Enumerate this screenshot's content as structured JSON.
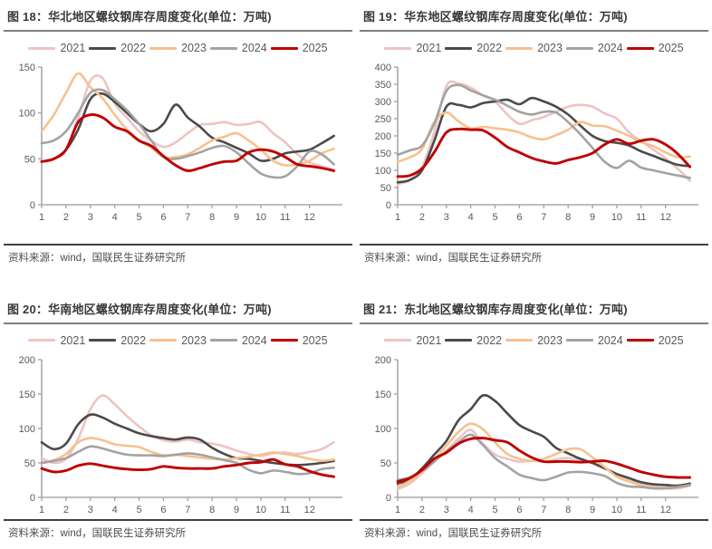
{
  "page": {
    "background": "#ffffff"
  },
  "colors": {
    "2021": "#eec3c4",
    "2022": "#4a4a4a",
    "2023": "#f7c18c",
    "2024": "#a3a3a3",
    "2025": "#bf0000",
    "axis": "#a8a8a8",
    "title_text": "#383838",
    "legend_text": "#595959",
    "tick_text": "#595959",
    "source_text": "#4d4d4d",
    "title_rule": "#7f7f7f",
    "source_rule": "#404040"
  },
  "source_label": "资料来源：wind，国联民生证券研究所",
  "chart_data": [
    {
      "id": "fig18",
      "type": "line",
      "title": "图 18：华北地区螺纹钢库存周度变化(单位：万吨)",
      "x": [
        1,
        1.5,
        2,
        2.5,
        3,
        3.5,
        4,
        4.5,
        5,
        5.5,
        6,
        6.5,
        7,
        7.5,
        8,
        8.5,
        9,
        9.5,
        10,
        10.5,
        11,
        11.5,
        12,
        12.5,
        13
      ],
      "xticks": [
        1,
        2,
        3,
        4,
        5,
        6,
        7,
        8,
        9,
        10,
        11,
        12
      ],
      "ylim": [
        0,
        150
      ],
      "yticks": [
        0,
        50,
        100,
        150
      ],
      "legend_position": "top",
      "grid": false,
      "series": [
        {
          "name": "2021",
          "values": [
            47,
            50,
            60,
            95,
            135,
            138,
            110,
            95,
            80,
            70,
            63,
            68,
            78,
            87,
            88,
            90,
            87,
            88,
            90,
            78,
            68,
            55,
            46,
            42,
            38
          ]
        },
        {
          "name": "2022",
          "values": [
            47,
            50,
            60,
            82,
            115,
            121,
            112,
            100,
            88,
            80,
            88,
            109,
            95,
            85,
            73,
            68,
            62,
            56,
            48,
            50,
            56,
            58,
            60,
            67,
            75
          ]
        },
        {
          "name": "2023",
          "values": [
            80,
            98,
            122,
            143,
            128,
            116,
            98,
            82,
            70,
            62,
            52,
            52,
            55,
            62,
            70,
            74,
            78,
            70,
            60,
            48,
            43,
            44,
            48,
            56,
            61
          ]
        },
        {
          "name": "2024",
          "values": [
            67,
            70,
            80,
            100,
            122,
            125,
            115,
            103,
            88,
            70,
            52,
            50,
            53,
            57,
            62,
            64,
            57,
            45,
            34,
            30,
            31,
            42,
            58,
            55,
            44
          ]
        },
        {
          "name": "2025",
          "values": [
            47,
            50,
            60,
            90,
            98,
            95,
            85,
            80,
            70,
            64,
            53,
            43,
            37,
            40,
            44,
            47,
            48,
            57,
            60,
            58,
            52,
            44,
            42,
            40,
            37
          ]
        }
      ]
    },
    {
      "id": "fig19",
      "type": "line",
      "title": "图 19：华东地区螺纹钢库存周度变化(单位：万吨)",
      "x": [
        1,
        1.5,
        2,
        2.5,
        3,
        3.5,
        4,
        4.5,
        5,
        5.5,
        6,
        6.5,
        7,
        7.5,
        8,
        8.5,
        9,
        9.5,
        10,
        10.5,
        11,
        11.5,
        12,
        12.5,
        13
      ],
      "xticks": [
        1,
        2,
        3,
        4,
        5,
        6,
        7,
        8,
        9,
        10,
        11,
        12
      ],
      "ylim": [
        0,
        400
      ],
      "yticks": [
        0,
        50,
        100,
        150,
        200,
        250,
        300,
        350,
        400
      ],
      "legend_position": "top",
      "grid": false,
      "series": [
        {
          "name": "2021",
          "values": [
            60,
            72,
            110,
            210,
            345,
            352,
            340,
            318,
            300,
            262,
            235,
            245,
            255,
            270,
            285,
            290,
            285,
            265,
            250,
            210,
            185,
            160,
            135,
            105,
            70
          ]
        },
        {
          "name": "2022",
          "values": [
            65,
            72,
            100,
            185,
            285,
            290,
            283,
            295,
            300,
            305,
            292,
            310,
            300,
            285,
            262,
            230,
            200,
            185,
            180,
            172,
            155,
            142,
            128,
            116,
            112
          ]
        },
        {
          "name": "2023",
          "values": [
            125,
            138,
            162,
            240,
            268,
            242,
            222,
            226,
            222,
            218,
            210,
            196,
            190,
            202,
            218,
            240,
            230,
            228,
            215,
            200,
            182,
            170,
            152,
            138,
            140
          ]
        },
        {
          "name": "2024",
          "values": [
            145,
            158,
            172,
            235,
            330,
            348,
            332,
            318,
            305,
            288,
            270,
            262,
            270,
            268,
            240,
            205,
            165,
            125,
            107,
            128,
            108,
            100,
            92,
            85,
            78
          ]
        },
        {
          "name": "2025",
          "values": [
            82,
            85,
            105,
            152,
            210,
            220,
            218,
            216,
            195,
            168,
            152,
            136,
            126,
            120,
            130,
            138,
            150,
            175,
            190,
            177,
            186,
            190,
            175,
            148,
            110
          ]
        }
      ]
    },
    {
      "id": "fig20",
      "type": "line",
      "title": "图 20：华南地区螺纹钢库存周度变化(单位：万吨)",
      "x": [
        1,
        1.5,
        2,
        2.5,
        3,
        3.5,
        4,
        4.5,
        5,
        5.5,
        6,
        6.5,
        7,
        7.5,
        8,
        8.5,
        9,
        9.5,
        10,
        10.5,
        11,
        11.5,
        12,
        12.5,
        13
      ],
      "xticks": [
        1,
        2,
        3,
        4,
        5,
        6,
        7,
        8,
        9,
        10,
        11,
        12
      ],
      "ylim": [
        0,
        200
      ],
      "yticks": [
        0,
        50,
        100,
        150,
        200
      ],
      "legend_position": "top",
      "grid": false,
      "series": [
        {
          "name": "2021",
          "values": [
            57,
            50,
            56,
            85,
            128,
            148,
            135,
            118,
            103,
            90,
            83,
            81,
            84,
            80,
            78,
            74,
            68,
            63,
            60,
            64,
            65,
            63,
            66,
            70,
            80
          ]
        },
        {
          "name": "2022",
          "values": [
            80,
            70,
            78,
            106,
            120,
            116,
            107,
            100,
            93,
            89,
            86,
            84,
            87,
            84,
            72,
            63,
            57,
            56,
            53,
            50,
            48,
            47,
            48,
            50,
            53
          ]
        },
        {
          "name": "2023",
          "values": [
            50,
            54,
            63,
            80,
            86,
            83,
            77,
            75,
            73,
            66,
            61,
            62,
            60,
            58,
            56,
            55,
            57,
            59,
            62,
            65,
            63,
            60,
            56,
            53,
            55
          ]
        },
        {
          "name": "2024",
          "values": [
            50,
            53,
            57,
            66,
            74,
            71,
            66,
            62,
            61,
            61,
            60,
            62,
            64,
            62,
            58,
            54,
            50,
            40,
            35,
            39,
            37,
            34,
            35,
            41,
            43
          ]
        },
        {
          "name": "2025",
          "values": [
            42,
            37,
            39,
            46,
            49,
            46,
            43,
            41,
            40,
            41,
            45,
            43,
            42,
            42,
            42,
            45,
            47,
            50,
            51,
            55,
            48,
            45,
            38,
            33,
            30
          ]
        }
      ]
    },
    {
      "id": "fig21",
      "type": "line",
      "title": "图 21：东北地区螺纹钢库存周度变化(单位：万吨)",
      "x": [
        1,
        1.5,
        2,
        2.5,
        3,
        3.5,
        4,
        4.5,
        5,
        5.5,
        6,
        6.5,
        7,
        7.5,
        8,
        8.5,
        9,
        9.5,
        10,
        10.5,
        11,
        11.5,
        12,
        12.5,
        13
      ],
      "xticks": [
        1,
        2,
        3,
        4,
        5,
        6,
        7,
        8,
        9,
        10,
        11,
        12
      ],
      "ylim": [
        0,
        200
      ],
      "yticks": [
        0,
        50,
        100,
        150,
        200
      ],
      "legend_position": "top",
      "grid": false,
      "series": [
        {
          "name": "2021",
          "values": [
            12,
            20,
            35,
            52,
            68,
            85,
            98,
            78,
            62,
            56,
            52,
            53,
            52,
            55,
            57,
            53,
            50,
            43,
            33,
            26,
            20,
            16,
            13,
            13,
            17
          ]
        },
        {
          "name": "2022",
          "values": [
            20,
            26,
            42,
            62,
            82,
            112,
            128,
            148,
            140,
            122,
            105,
            96,
            88,
            72,
            64,
            56,
            50,
            42,
            34,
            28,
            22,
            19,
            18,
            17,
            20
          ]
        },
        {
          "name": "2023",
          "values": [
            15,
            24,
            38,
            55,
            75,
            95,
            107,
            99,
            80,
            63,
            56,
            53,
            56,
            63,
            70,
            70,
            58,
            44,
            30,
            23,
            17,
            14,
            14,
            15,
            18
          ]
        },
        {
          "name": "2024",
          "values": [
            25,
            29,
            38,
            52,
            67,
            80,
            91,
            76,
            57,
            45,
            33,
            28,
            25,
            30,
            36,
            37,
            35,
            31,
            21,
            16,
            15,
            13,
            13,
            15,
            18
          ]
        },
        {
          "name": "2025",
          "values": [
            23,
            28,
            40,
            56,
            65,
            78,
            85,
            86,
            83,
            80,
            68,
            58,
            52,
            52,
            52,
            51,
            52,
            53,
            49,
            43,
            37,
            33,
            30,
            29,
            29
          ]
        }
      ]
    }
  ]
}
